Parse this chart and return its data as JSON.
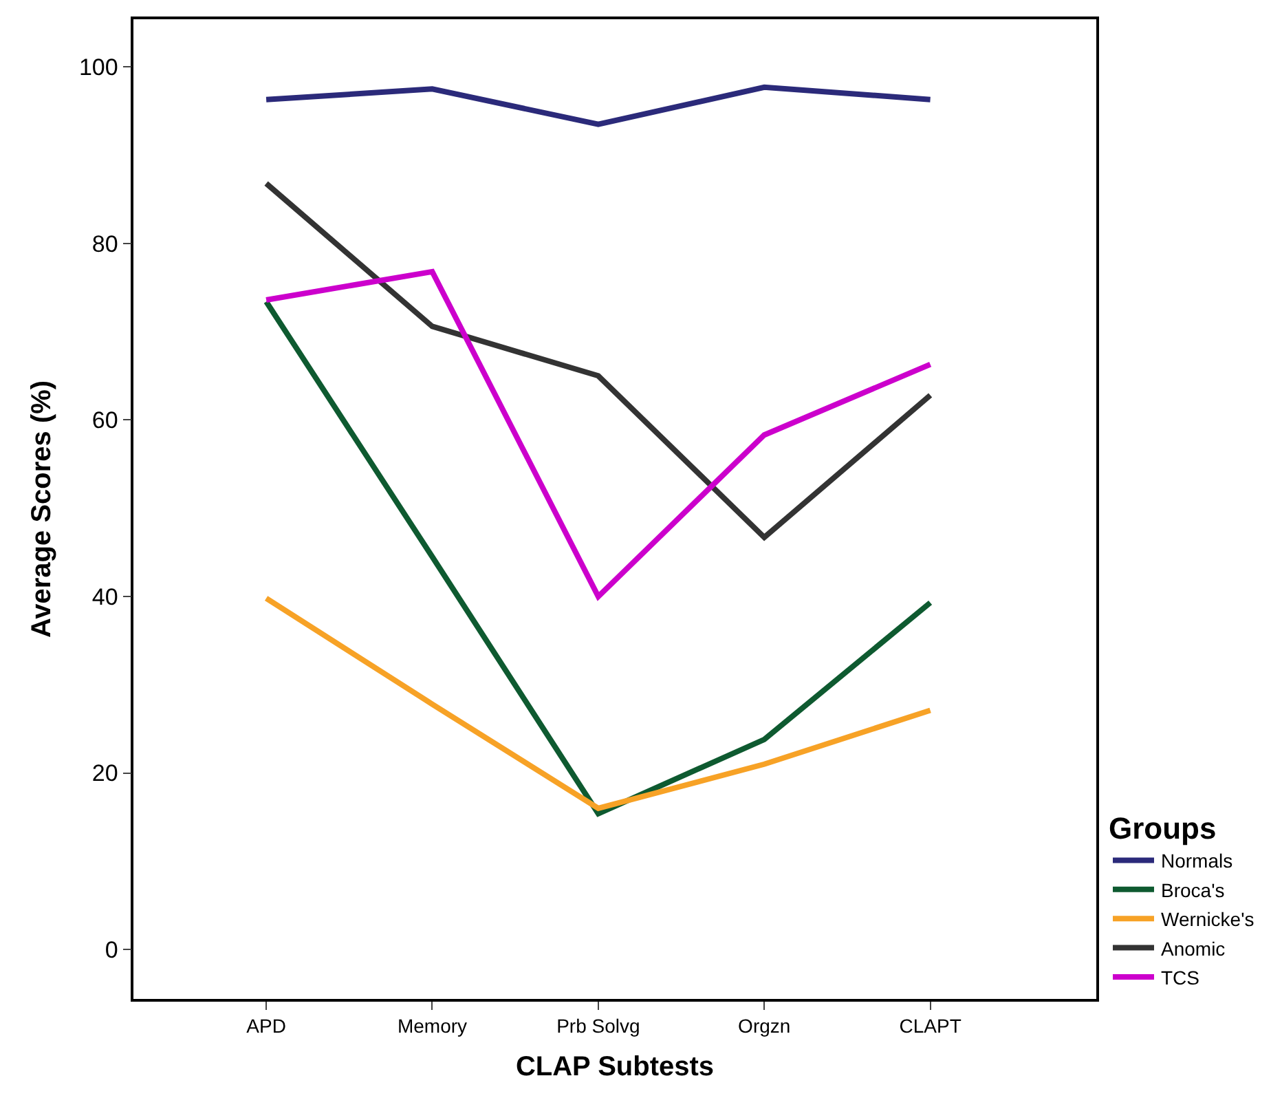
{
  "chart_data": {
    "type": "line",
    "xlabel": "CLAP Subtests",
    "ylabel": "Average Scores (%)",
    "legend_title": "Groups",
    "categories": [
      "APD",
      "Memory",
      "Prb Solvg",
      "Orgzn",
      "CLAPT"
    ],
    "series": [
      {
        "name": "Normals",
        "color": "#2b2a7a",
        "values": [
          96.3,
          97.5,
          93.5,
          97.7,
          96.3
        ]
      },
      {
        "name": "Broca's",
        "color": "#0e5a30",
        "values": [
          73.4,
          44.5,
          15.4,
          23.8,
          39.3
        ]
      },
      {
        "name": "Wernicke's",
        "color": "#f7a226",
        "values": [
          39.8,
          27.8,
          16.0,
          21.0,
          27.1
        ]
      },
      {
        "name": "Anomic",
        "color": "#333333",
        "values": [
          86.8,
          70.6,
          65.0,
          46.7,
          62.8
        ]
      },
      {
        "name": "TCS",
        "color": "#cc00cc",
        "values": [
          73.6,
          76.8,
          40.0,
          58.3,
          66.3
        ]
      }
    ],
    "ylim": [
      -5.6,
      105.4
    ],
    "yticks": [
      0,
      20,
      40,
      60,
      80,
      100
    ],
    "legend": "bottom right",
    "marker": "none",
    "line_style": "solid"
  }
}
